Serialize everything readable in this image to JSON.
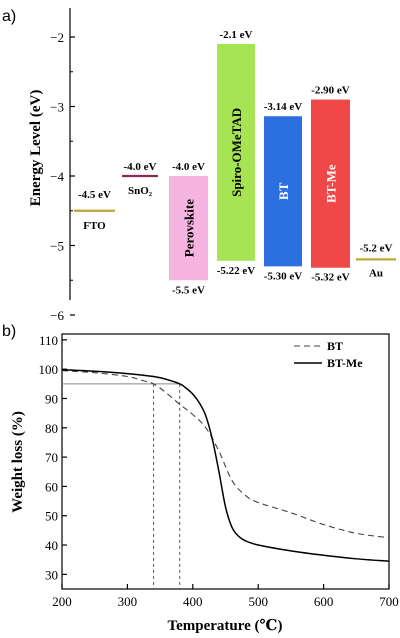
{
  "chart_data": [
    {
      "type": "bar",
      "panel_label": "a)",
      "ylabel": "Energy Level (eV)",
      "ylim": [
        -6.7,
        -1.5
      ],
      "yticks": [
        -2,
        -3,
        -4,
        -5,
        -6
      ],
      "ytick_labels": [
        "−2",
        "−3",
        "−4",
        "−5",
        "−6"
      ],
      "levels": [
        {
          "name": "FTO",
          "value": -4.5,
          "label": "-4.5 eV",
          "color": "#b8a838"
        },
        {
          "name": "SnO₂",
          "value": -4.0,
          "label": "-4.0 eV",
          "color": "#8a2a55"
        },
        {
          "name": "Au",
          "value": -5.2,
          "label": "-5.2 eV",
          "color": "#b8a838"
        }
      ],
      "bands": [
        {
          "name": "Perovskite",
          "top": -4.0,
          "bottom": -5.5,
          "top_label": "-4.0 eV",
          "bottom_label": "-5.5 eV",
          "color": "#f6b4e0",
          "text_color": "#000000"
        },
        {
          "name": "Spiro-OMeTAD",
          "top": -2.1,
          "bottom": -5.22,
          "top_label": "-2.1 eV",
          "bottom_label": "-5.22 eV",
          "color": "#a6e454",
          "text_color": "#000000"
        },
        {
          "name": "BT",
          "top": -3.14,
          "bottom": -5.3,
          "top_label": "-3.14 eV",
          "bottom_label": "-5.30 eV",
          "color": "#2b6fe0",
          "text_color": "#ffffff"
        },
        {
          "name": "BT-Me",
          "top": -2.9,
          "bottom": -5.32,
          "top_label": "-2.90 eV",
          "bottom_label": "-5.32 eV",
          "color": "#f04848",
          "text_color": "#ffffff"
        }
      ]
    },
    {
      "type": "line",
      "panel_label": "b)",
      "xlabel": "Temperature (℃)",
      "ylabel": "Weight loss (%)",
      "xlim": [
        200,
        700
      ],
      "ylim": [
        25,
        112
      ],
      "xticks": [
        200,
        300,
        400,
        500,
        600,
        700
      ],
      "yticks": [
        30,
        40,
        50,
        60,
        70,
        80,
        90,
        100,
        110
      ],
      "legend_position": "top-right",
      "reference_line": {
        "y": 95,
        "x_markers": [
          340,
          380
        ]
      },
      "series": [
        {
          "name": "BT",
          "style": "dashed",
          "x": [
            200,
            250,
            300,
            320,
            340,
            360,
            380,
            400,
            420,
            440,
            460,
            480,
            500,
            550,
            600,
            650,
            700
          ],
          "y": [
            99.5,
            98.8,
            97.5,
            96.3,
            95,
            91.8,
            88,
            84.5,
            80,
            72,
            62,
            57,
            54.5,
            51,
            47,
            44,
            42.5
          ]
        },
        {
          "name": "BT-Me",
          "style": "solid",
          "x": [
            200,
            250,
            300,
            340,
            360,
            380,
            390,
            400,
            410,
            420,
            430,
            440,
            450,
            460,
            470,
            480,
            500,
            550,
            600,
            650,
            700
          ],
          "y": [
            99.8,
            99.3,
            98.5,
            97.5,
            96.5,
            95,
            93.5,
            91.5,
            88.5,
            84,
            76,
            65,
            53,
            46,
            43,
            41.5,
            40,
            38,
            36.5,
            35.3,
            34.5
          ]
        }
      ]
    }
  ]
}
